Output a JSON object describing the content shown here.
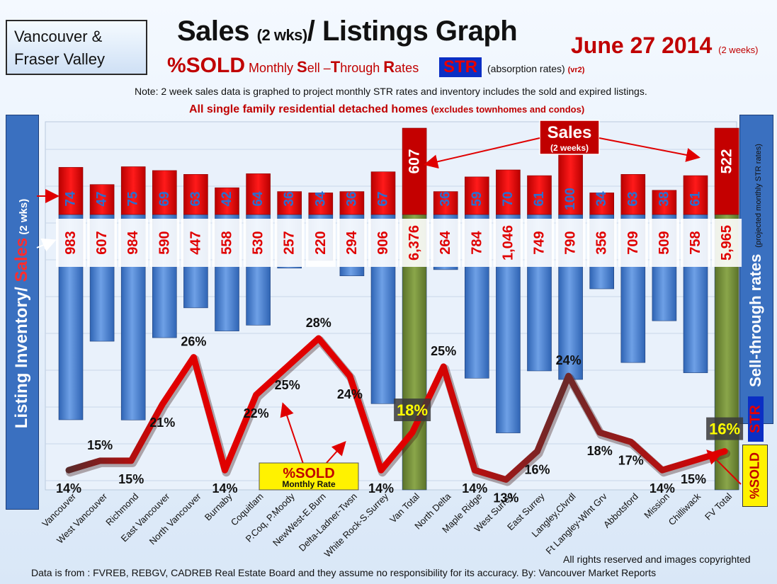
{
  "header": {
    "region_line1": "Vancouver &",
    "region_line2": "Fraser Valley",
    "title_a": "Sales ",
    "title_b": "(2 wks)",
    "title_c": "/ Listings Graph",
    "date": "June 27 2014",
    "date_note": "(2 weeks)",
    "sub_sold": "%SOLD",
    "sub_m": " Monthly ",
    "sub_s": "S",
    "sub_ell": "ell –",
    "sub_t": "T",
    "sub_hrough": "hrough ",
    "sub_r": "R",
    "sub_ates": "ates",
    "str": "STR",
    "absorption": "(absorption rates)",
    "version": "(vr2)",
    "note": "Note: 2 week sales data is graphed to project monthly STR rates and inventory includes the sold and expired listings.",
    "scope": "All single family residential detached homes",
    "scope_note": "(excludes townhomes and condos)"
  },
  "left_axis": {
    "listing": "Listing Inventory/ ",
    "sales": "Sales",
    "wks": " (2 wks)"
  },
  "right_axis": {
    "title": "Sell-through rates",
    "note": "(projected monthly STR rates)",
    "str": "STR",
    "sold": "%SOLD"
  },
  "callouts": {
    "sales_title": "Sales",
    "sales_sub": "(2 weeks)",
    "sold_title": "%SOLD",
    "sold_sub": "Monthly Rate"
  },
  "footer": {
    "rights": "All rights reserved and  images copyrighted",
    "source": "Data is  from : FVREB, REBGV, CADREB Real Estate Board and they assume  no responsibility  for its accuracy. By: Vancouver Market Reports"
  },
  "colors": {
    "sales_bar": "#e60000",
    "total_sales_bar": "#c40000",
    "inventory_bar": "#4a82d0",
    "total_bar": "#77923c",
    "line": "#e00000",
    "line_dark": "#5a2a2a"
  },
  "chart_data": {
    "type": "bar",
    "categories": [
      "Vancouver",
      "West Vancouver",
      "Richmond",
      "East Vancouver",
      "North Vancouver",
      "Burnaby",
      "Coquitlam",
      "P.Coq, P.Moody",
      "NewWest-E.Burn",
      "Delta-Ladner-Twsn",
      "White Rock-S.Surrey",
      "Van Total",
      "North Delta",
      "Maple Ridge",
      "West Surrey",
      "East Surrey",
      "Langley,Clvrdl",
      "Ft Langley-Wlnt Grv",
      "Abbotsford",
      "Mission",
      "Chilliwack",
      "FV Total"
    ],
    "series": [
      {
        "name": "Sales",
        "values": [
          74,
          47,
          75,
          69,
          63,
          42,
          64,
          36,
          34,
          36,
          67,
          607,
          36,
          59,
          70,
          61,
          100,
          34,
          63,
          38,
          61,
          522
        ],
        "labels": [
          "74",
          "47",
          "75",
          "69",
          "63",
          "42",
          "64",
          "36",
          "34",
          "36",
          "67",
          "607",
          "36",
          "59",
          "70",
          "61",
          "100",
          "34",
          "63",
          "38",
          "61",
          "522"
        ]
      },
      {
        "name": "Listing Inventory",
        "values": [
          983,
          607,
          984,
          590,
          447,
          558,
          530,
          257,
          220,
          294,
          906,
          6376,
          264,
          784,
          1046,
          749,
          790,
          356,
          709,
          509,
          758,
          5965
        ],
        "labels": [
          "983",
          "607",
          "984",
          "590",
          "447",
          "558",
          "530",
          "257",
          "220",
          "294",
          "906",
          "6,376",
          "264",
          "784",
          "1,046",
          "749",
          "790",
          "356",
          "709",
          "509",
          "758",
          "5,965"
        ]
      },
      {
        "name": "%SOLD",
        "values": [
          14,
          15,
          15,
          21,
          26,
          14,
          22,
          25,
          28,
          24,
          14,
          18,
          25,
          14,
          13,
          16,
          24,
          18,
          17,
          14,
          15,
          16
        ],
        "labels": [
          "14%",
          "15%",
          "15%",
          "21%",
          "26%",
          "14%",
          "22%",
          "25%",
          "28%",
          "24%",
          "14%",
          "18%",
          "25%",
          "14%",
          "13%",
          "16%",
          "24%",
          "18%",
          "17%",
          "14%",
          "15%",
          "16%"
        ]
      }
    ],
    "totals_index": [
      11,
      21
    ]
  }
}
